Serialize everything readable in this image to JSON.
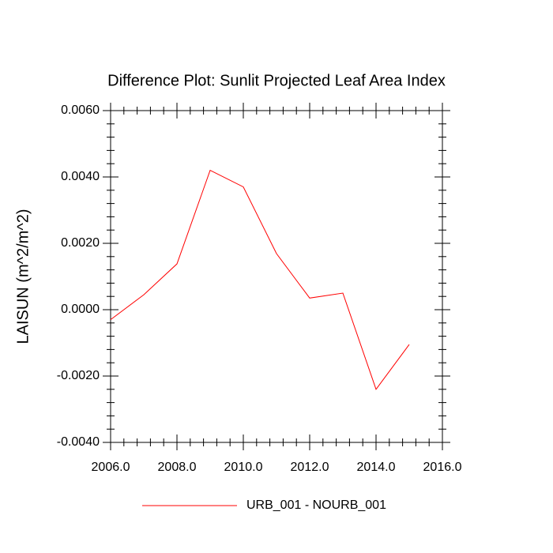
{
  "chart_data": {
    "type": "line",
    "title": "Difference Plot: Sunlit Projected Leaf Area Index",
    "y_label": "LAISUN  (m^2/m^2)",
    "x": [
      2006,
      2007,
      2008,
      2009,
      2010,
      2011,
      2012,
      2013,
      2014,
      2015
    ],
    "series": [
      {
        "name": "URB_001 - NOURB_001",
        "color": "#ff0000",
        "values": [
          -0.0003,
          0.00045,
          0.00138,
          0.0042,
          0.0037,
          0.00169,
          0.00035,
          0.0005,
          -0.0024,
          -0.00105
        ]
      }
    ],
    "xlim": [
      2006,
      2016
    ],
    "xticks": [
      {
        "value": 2006,
        "label": "2006.0"
      },
      {
        "value": 2008,
        "label": "2008.0"
      },
      {
        "value": 2010,
        "label": "2010.0"
      },
      {
        "value": 2012,
        "label": "2012.0"
      },
      {
        "value": 2014,
        "label": "2014.0"
      },
      {
        "value": 2016,
        "label": "2016.0"
      }
    ],
    "ylim": [
      -0.004,
      0.006
    ],
    "yticks": [
      {
        "value": -0.004,
        "label": "-0.0040"
      },
      {
        "value": -0.002,
        "label": "-0.0020"
      },
      {
        "value": 0,
        "label": "0.0000"
      },
      {
        "value": 0.002,
        "label": "0.0020"
      },
      {
        "value": 0.004,
        "label": "0.0040"
      },
      {
        "value": 0.006,
        "label": "0.0060"
      }
    ],
    "legend": "bottom"
  }
}
